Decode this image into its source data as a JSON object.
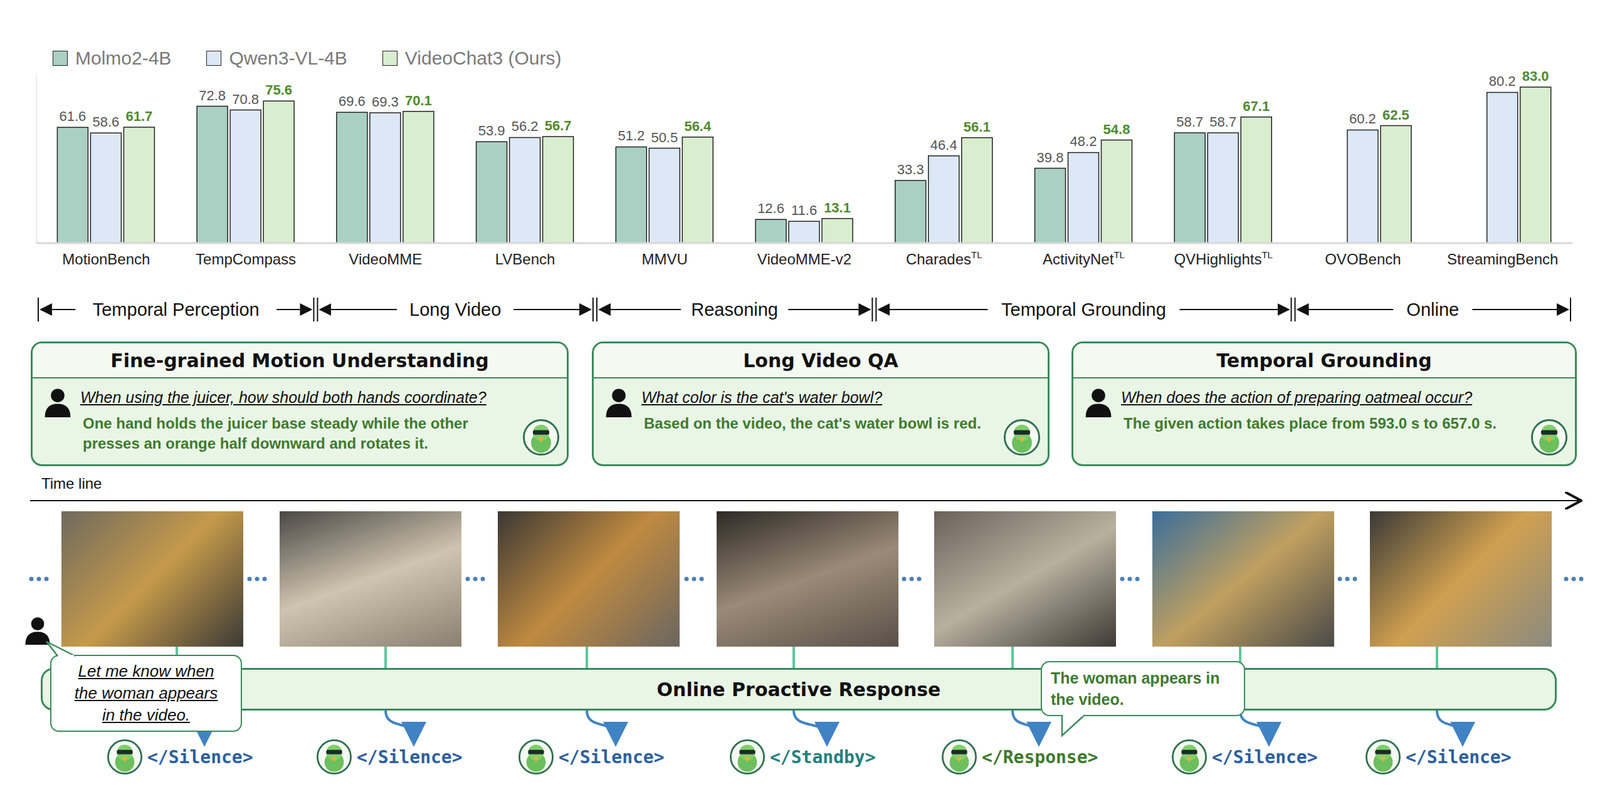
{
  "chart_data": {
    "type": "bar",
    "categories": [
      "MotionBench",
      "TempCompass",
      "VideoMME",
      "LVBench",
      "MMVU",
      "VideoMME-v2",
      "Charades",
      "ActivityNet",
      "QVHighlights",
      "OVOBench",
      "StreamingBench"
    ],
    "category_superscripts": [
      null,
      null,
      null,
      null,
      null,
      null,
      "TL",
      "TL",
      "TL",
      null,
      null
    ],
    "series": [
      {
        "name": "Molmo2-4B",
        "color": "#a9d0c3",
        "values": [
          61.6,
          72.8,
          69.6,
          53.9,
          51.2,
          12.6,
          33.3,
          39.8,
          58.7,
          null,
          null
        ]
      },
      {
        "name": "Qwen3-VL-4B",
        "color": "#dce8f6",
        "values": [
          58.6,
          70.8,
          69.3,
          56.2,
          50.5,
          11.6,
          46.4,
          48.2,
          58.7,
          60.2,
          80.2
        ]
      },
      {
        "name": "VideoChat3 (Ours)",
        "color": "#d9edcf",
        "values": [
          61.7,
          75.6,
          70.1,
          56.7,
          56.4,
          13.1,
          56.1,
          54.8,
          67.1,
          62.5,
          83.0
        ],
        "value_labels": [
          "61.7",
          "75.6",
          "70.1",
          "56.7",
          "56.4",
          "13.1",
          "56.1",
          "54.8",
          "67.1",
          "62.5",
          "83.0"
        ]
      }
    ],
    "ylim": [
      0,
      90
    ],
    "tick_labels": "x",
    "data_labels": true,
    "legend": "top-left",
    "groups": [
      {
        "label": "Temporal Perception",
        "start": 0,
        "end": 1
      },
      {
        "label": "Long Video",
        "start": 2,
        "end": 3
      },
      {
        "label": "Reasoning",
        "start": 4,
        "end": 5
      },
      {
        "label": "Temporal Grounding",
        "start": 6,
        "end": 8
      },
      {
        "label": "Online",
        "start": 9,
        "end": 10
      }
    ]
  },
  "panels": [
    {
      "title": "Fine-grained Motion Understanding",
      "question": "When using the juicer, how should both hands coordinate?",
      "answer": "One hand holds the juicer base steady while the other presses an orange half downward and rotates it."
    },
    {
      "title": "Long Video QA",
      "question": "What color is the cat's water bowl?",
      "answer": "Based on the video, the cat's water bowl is red."
    },
    {
      "title": "Temporal Grounding",
      "question": "When does the action of preparing oatmeal occur?",
      "answer": "The given action takes place from 593.0 s to 657.0 s."
    }
  ],
  "timeline": {
    "label": "Time line"
  },
  "online": {
    "title": "Online Proactive Response",
    "user_query_lines": [
      "Let me know when",
      "the woman appears",
      "in the video."
    ],
    "response_lines": [
      "The woman appears in",
      "the video."
    ],
    "tags": [
      {
        "text": "</Silence>",
        "color": "#2c5f9e"
      },
      {
        "text": "</Silence>",
        "color": "#2c5f9e"
      },
      {
        "text": "</Silence>",
        "color": "#2c5f9e"
      },
      {
        "text": "</Standby>",
        "color": "#24807e"
      },
      {
        "text": "</Response>",
        "color": "#3d7a2a"
      },
      {
        "text": "</Silence>",
        "color": "#2c5f9e"
      },
      {
        "text": "</Silence>",
        "color": "#2c5f9e"
      }
    ]
  }
}
